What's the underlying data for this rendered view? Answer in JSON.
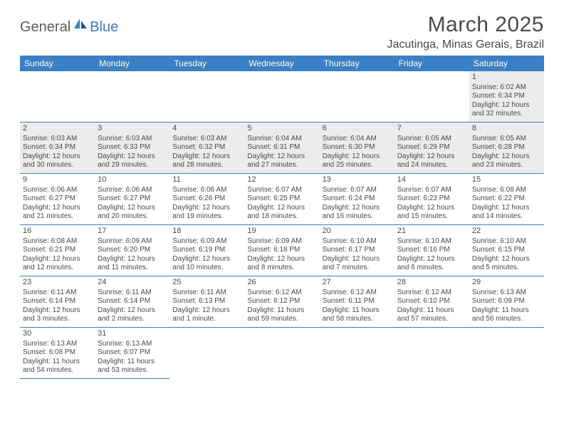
{
  "logo": {
    "text1": "General",
    "text2": "Blue"
  },
  "title": "March 2025",
  "location": "Jacutinga, Minas Gerais, Brazil",
  "colors": {
    "header_bg": "#3b7fc4",
    "header_text": "#ffffff",
    "border": "#3b7fc4",
    "shaded_bg": "#ececec",
    "body_text": "#4a4a4a",
    "logo_gray": "#5b5b5b",
    "logo_blue": "#3b7fc4"
  },
  "weekdays": [
    "Sunday",
    "Monday",
    "Tuesday",
    "Wednesday",
    "Thursday",
    "Friday",
    "Saturday"
  ],
  "leading_blanks": 6,
  "days": [
    {
      "n": 1,
      "sunrise": "6:02 AM",
      "sunset": "6:34 PM",
      "daylight": "12 hours and 32 minutes."
    },
    {
      "n": 2,
      "sunrise": "6:03 AM",
      "sunset": "6:34 PM",
      "daylight": "12 hours and 30 minutes."
    },
    {
      "n": 3,
      "sunrise": "6:03 AM",
      "sunset": "6:33 PM",
      "daylight": "12 hours and 29 minutes."
    },
    {
      "n": 4,
      "sunrise": "6:03 AM",
      "sunset": "6:32 PM",
      "daylight": "12 hours and 28 minutes."
    },
    {
      "n": 5,
      "sunrise": "6:04 AM",
      "sunset": "6:31 PM",
      "daylight": "12 hours and 27 minutes."
    },
    {
      "n": 6,
      "sunrise": "6:04 AM",
      "sunset": "6:30 PM",
      "daylight": "12 hours and 25 minutes."
    },
    {
      "n": 7,
      "sunrise": "6:05 AM",
      "sunset": "6:29 PM",
      "daylight": "12 hours and 24 minutes."
    },
    {
      "n": 8,
      "sunrise": "6:05 AM",
      "sunset": "6:28 PM",
      "daylight": "12 hours and 23 minutes."
    },
    {
      "n": 9,
      "sunrise": "6:06 AM",
      "sunset": "6:27 PM",
      "daylight": "12 hours and 21 minutes."
    },
    {
      "n": 10,
      "sunrise": "6:06 AM",
      "sunset": "6:27 PM",
      "daylight": "12 hours and 20 minutes."
    },
    {
      "n": 11,
      "sunrise": "6:06 AM",
      "sunset": "6:26 PM",
      "daylight": "12 hours and 19 minutes."
    },
    {
      "n": 12,
      "sunrise": "6:07 AM",
      "sunset": "6:25 PM",
      "daylight": "12 hours and 18 minutes."
    },
    {
      "n": 13,
      "sunrise": "6:07 AM",
      "sunset": "6:24 PM",
      "daylight": "12 hours and 16 minutes."
    },
    {
      "n": 14,
      "sunrise": "6:07 AM",
      "sunset": "6:23 PM",
      "daylight": "12 hours and 15 minutes."
    },
    {
      "n": 15,
      "sunrise": "6:08 AM",
      "sunset": "6:22 PM",
      "daylight": "12 hours and 14 minutes."
    },
    {
      "n": 16,
      "sunrise": "6:08 AM",
      "sunset": "6:21 PM",
      "daylight": "12 hours and 12 minutes."
    },
    {
      "n": 17,
      "sunrise": "6:09 AM",
      "sunset": "6:20 PM",
      "daylight": "12 hours and 11 minutes."
    },
    {
      "n": 18,
      "sunrise": "6:09 AM",
      "sunset": "6:19 PM",
      "daylight": "12 hours and 10 minutes."
    },
    {
      "n": 19,
      "sunrise": "6:09 AM",
      "sunset": "6:18 PM",
      "daylight": "12 hours and 8 minutes."
    },
    {
      "n": 20,
      "sunrise": "6:10 AM",
      "sunset": "6:17 PM",
      "daylight": "12 hours and 7 minutes."
    },
    {
      "n": 21,
      "sunrise": "6:10 AM",
      "sunset": "6:16 PM",
      "daylight": "12 hours and 6 minutes."
    },
    {
      "n": 22,
      "sunrise": "6:10 AM",
      "sunset": "6:15 PM",
      "daylight": "12 hours and 5 minutes."
    },
    {
      "n": 23,
      "sunrise": "6:11 AM",
      "sunset": "6:14 PM",
      "daylight": "12 hours and 3 minutes."
    },
    {
      "n": 24,
      "sunrise": "6:11 AM",
      "sunset": "6:14 PM",
      "daylight": "12 hours and 2 minutes."
    },
    {
      "n": 25,
      "sunrise": "6:11 AM",
      "sunset": "6:13 PM",
      "daylight": "12 hours and 1 minute."
    },
    {
      "n": 26,
      "sunrise": "6:12 AM",
      "sunset": "6:12 PM",
      "daylight": "11 hours and 59 minutes."
    },
    {
      "n": 27,
      "sunrise": "6:12 AM",
      "sunset": "6:11 PM",
      "daylight": "11 hours and 58 minutes."
    },
    {
      "n": 28,
      "sunrise": "6:12 AM",
      "sunset": "6:10 PM",
      "daylight": "11 hours and 57 minutes."
    },
    {
      "n": 29,
      "sunrise": "6:13 AM",
      "sunset": "6:09 PM",
      "daylight": "11 hours and 56 minutes."
    },
    {
      "n": 30,
      "sunrise": "6:13 AM",
      "sunset": "6:08 PM",
      "daylight": "11 hours and 54 minutes."
    },
    {
      "n": 31,
      "sunrise": "6:13 AM",
      "sunset": "6:07 PM",
      "daylight": "11 hours and 53 minutes."
    }
  ],
  "labels": {
    "sunrise": "Sunrise:",
    "sunset": "Sunset:",
    "daylight": "Daylight:"
  }
}
